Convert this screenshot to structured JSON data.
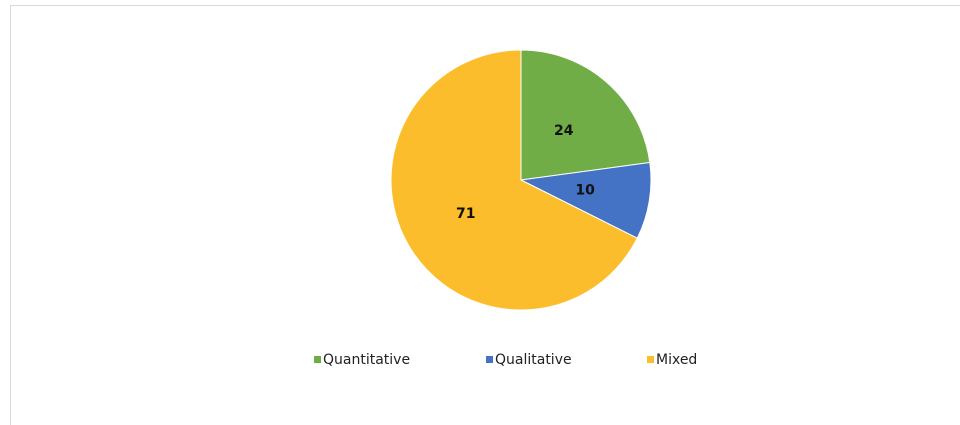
{
  "chart_data": {
    "type": "pie",
    "categories": [
      "Quantitative",
      "Qualitative",
      "Mixed"
    ],
    "values": [
      24,
      10,
      71
    ],
    "colors": [
      "#70ad47",
      "#4472c4",
      "#fbbd2b"
    ]
  }
}
